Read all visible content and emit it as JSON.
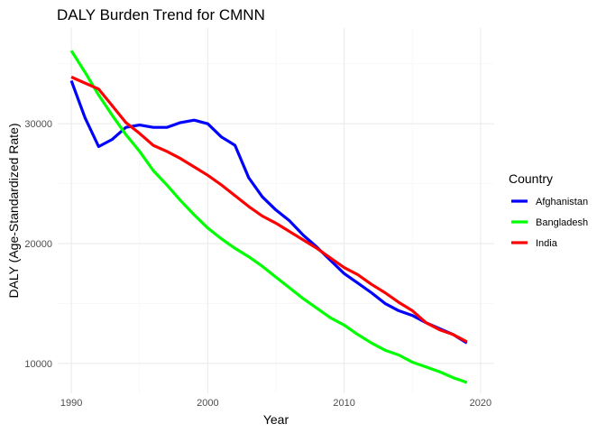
{
  "chart_data": {
    "type": "line",
    "title": "DALY Burden Trend for CMNN",
    "xlabel": "Year",
    "ylabel": "DALY (Age-Standardized Rate)",
    "xlim": [
      1989,
      2021
    ],
    "ylim": [
      7500,
      38000
    ],
    "x_ticks": [
      1990,
      2000,
      2010,
      2020
    ],
    "y_ticks": [
      10000,
      20000,
      30000
    ],
    "grid": true,
    "legend": {
      "title": "Country",
      "position": "right"
    },
    "x": [
      1990,
      1991,
      1992,
      1993,
      1994,
      1995,
      1996,
      1997,
      1998,
      1999,
      2000,
      2001,
      2002,
      2003,
      2004,
      2005,
      2006,
      2007,
      2008,
      2009,
      2010,
      2011,
      2012,
      2013,
      2014,
      2015,
      2016,
      2017,
      2018,
      2019
    ],
    "series": [
      {
        "name": "Afghanistan",
        "color": "#0000ff",
        "values": [
          33600,
          30500,
          28100,
          28700,
          29700,
          29900,
          29700,
          29700,
          30100,
          30300,
          30000,
          28900,
          28200,
          25500,
          23900,
          22800,
          21900,
          20700,
          19700,
          18600,
          17500,
          16700,
          15900,
          15000,
          14400,
          14000,
          13400,
          12900,
          12400,
          11700
        ]
      },
      {
        "name": "Bangladesh",
        "color": "#00ff00",
        "values": [
          36100,
          34300,
          32400,
          30700,
          29100,
          27700,
          26100,
          24900,
          23600,
          22400,
          21300,
          20400,
          19600,
          18900,
          18100,
          17200,
          16300,
          15400,
          14600,
          13800,
          13200,
          12400,
          11700,
          11100,
          10700,
          10100,
          9700,
          9300,
          8800,
          8400
        ]
      },
      {
        "name": "India",
        "color": "#ff0000",
        "values": [
          33900,
          33400,
          32900,
          31500,
          30100,
          29200,
          28200,
          27700,
          27100,
          26400,
          25700,
          24900,
          24000,
          23100,
          22300,
          21700,
          21000,
          20300,
          19600,
          18800,
          18000,
          17400,
          16600,
          15900,
          15100,
          14400,
          13400,
          12800,
          12400,
          11800
        ]
      }
    ]
  }
}
